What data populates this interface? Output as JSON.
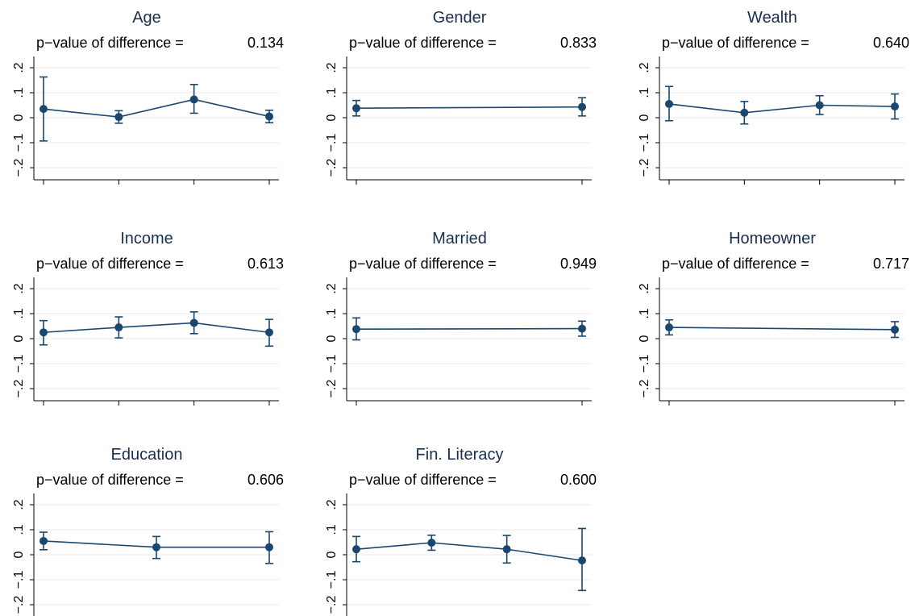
{
  "chart_data": [
    {
      "type": "line",
      "title": "Age",
      "subtitle_label": "p−value of difference =",
      "subtitle_value": "0.134",
      "x": [
        1,
        2,
        3,
        4
      ],
      "values": [
        0.035,
        0.003,
        0.073,
        0.005
      ],
      "ci_low": [
        -0.093,
        -0.022,
        0.018,
        -0.02
      ],
      "ci_high": [
        0.163,
        0.028,
        0.133,
        0.03
      ],
      "yticks": [
        "−.2",
        "−.1",
        "0",
        ".1",
        ".2"
      ],
      "ylim": [
        -0.2,
        0.2
      ],
      "grid": true
    },
    {
      "type": "line",
      "title": "Gender",
      "subtitle_label": "p−value of difference =",
      "subtitle_value": "0.833",
      "x": [
        1,
        2
      ],
      "values": [
        0.038,
        0.043
      ],
      "ci_low": [
        0.007,
        0.007
      ],
      "ci_high": [
        0.069,
        0.08
      ],
      "yticks": [
        "−.2",
        "−.1",
        "0",
        ".1",
        ".2"
      ],
      "ylim": [
        -0.2,
        0.2
      ],
      "grid": true
    },
    {
      "type": "line",
      "title": "Wealth",
      "subtitle_label": "p−value of difference =",
      "subtitle_value": "0.640",
      "x": [
        1,
        2,
        3,
        4
      ],
      "values": [
        0.055,
        0.02,
        0.05,
        0.045
      ],
      "ci_low": [
        -0.012,
        -0.025,
        0.013,
        -0.005
      ],
      "ci_high": [
        0.125,
        0.065,
        0.088,
        0.095
      ],
      "yticks": [
        "−.2",
        "−.1",
        "0",
        ".1",
        ".2"
      ],
      "ylim": [
        -0.2,
        0.2
      ],
      "grid": true
    },
    {
      "type": "line",
      "title": "Income",
      "subtitle_label": "p−value of difference =",
      "subtitle_value": "0.613",
      "x": [
        1,
        2,
        3,
        4
      ],
      "values": [
        0.025,
        0.045,
        0.063,
        0.025
      ],
      "ci_low": [
        -0.025,
        0.003,
        0.02,
        -0.03
      ],
      "ci_high": [
        0.072,
        0.087,
        0.107,
        0.077
      ],
      "yticks": [
        "−.2",
        "−.1",
        "0",
        ".1",
        ".2"
      ],
      "ylim": [
        -0.2,
        0.2
      ],
      "grid": true
    },
    {
      "type": "line",
      "title": "Married",
      "subtitle_label": "p−value of difference =",
      "subtitle_value": "0.949",
      "x": [
        1,
        2
      ],
      "values": [
        0.038,
        0.04
      ],
      "ci_low": [
        -0.005,
        0.01
      ],
      "ci_high": [
        0.083,
        0.07
      ],
      "yticks": [
        "−.2",
        "−.1",
        "0",
        ".1",
        ".2"
      ],
      "ylim": [
        -0.2,
        0.2
      ],
      "grid": true
    },
    {
      "type": "line",
      "title": "Homeowner",
      "subtitle_label": "p−value of difference =",
      "subtitle_value": "0.717",
      "x": [
        1,
        2
      ],
      "values": [
        0.045,
        0.036
      ],
      "ci_low": [
        0.015,
        0.005
      ],
      "ci_high": [
        0.075,
        0.068
      ],
      "yticks": [
        "−.2",
        "−.1",
        "0",
        ".1",
        ".2"
      ],
      "ylim": [
        -0.2,
        0.2
      ],
      "grid": true
    },
    {
      "type": "line",
      "title": "Education",
      "subtitle_label": "p−value of difference =",
      "subtitle_value": "0.606",
      "x": [
        1,
        2,
        3
      ],
      "values": [
        0.055,
        0.03,
        0.03
      ],
      "ci_low": [
        0.02,
        -0.015,
        -0.035
      ],
      "ci_high": [
        0.09,
        0.073,
        0.092
      ],
      "yticks": [
        "−.2",
        "−.1",
        "0",
        ".1",
        ".2"
      ],
      "ylim": [
        -0.2,
        0.2
      ],
      "grid": true
    },
    {
      "type": "line",
      "title": "Fin. Literacy",
      "subtitle_label": "p−value of difference =",
      "subtitle_value": "0.600",
      "x": [
        1,
        2,
        3,
        4
      ],
      "values": [
        0.022,
        0.048,
        0.022,
        -0.023
      ],
      "ci_low": [
        -0.028,
        0.018,
        -0.033,
        -0.143
      ],
      "ci_high": [
        0.073,
        0.078,
        0.077,
        0.105
      ],
      "yticks": [
        "−.2",
        "−.1",
        "0",
        ".1",
        ".2"
      ],
      "ylim": [
        -0.2,
        0.2
      ],
      "grid": true
    }
  ],
  "colors": {
    "series": "#1a476f",
    "title": "#1a2f4f",
    "grid": "#e6eaef"
  }
}
